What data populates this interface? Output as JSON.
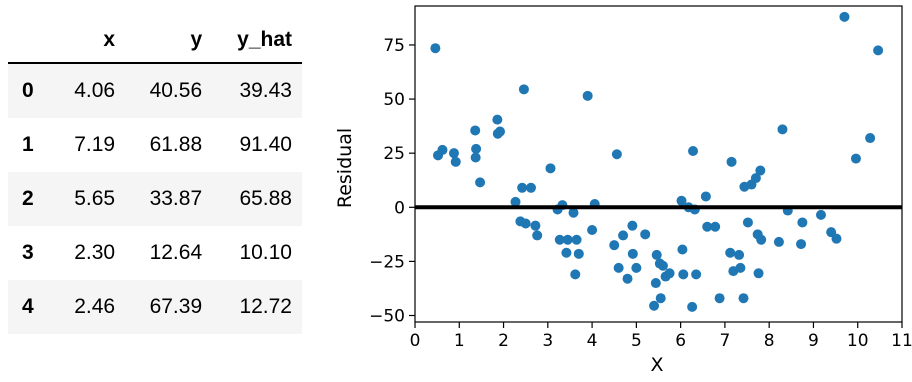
{
  "table": {
    "columns": [
      "",
      "x",
      "y",
      "y_hat"
    ],
    "rows": [
      {
        "index": "0",
        "x": "4.06",
        "y": "40.56",
        "y_hat": "39.43"
      },
      {
        "index": "1",
        "x": "7.19",
        "y": "61.88",
        "y_hat": "91.40"
      },
      {
        "index": "2",
        "x": "5.65",
        "y": "33.87",
        "y_hat": "65.88"
      },
      {
        "index": "3",
        "x": "2.30",
        "y": "12.64",
        "y_hat": "10.10"
      },
      {
        "index": "4",
        "x": "2.46",
        "y": "67.39",
        "y_hat": "12.72"
      }
    ]
  },
  "chart_data": {
    "type": "scatter",
    "xlabel": "X",
    "ylabel": "Residual",
    "xlim": [
      0,
      11
    ],
    "ylim": [
      -53,
      93
    ],
    "xticks": [
      0,
      1,
      2,
      3,
      4,
      5,
      6,
      7,
      8,
      9,
      10,
      11
    ],
    "yticks": [
      -50,
      -25,
      0,
      25,
      50,
      75
    ],
    "grid": false,
    "point_color": "#1f77b4",
    "hline": {
      "y": 0,
      "color": "#000000"
    },
    "points": [
      [
        0.46,
        73.5
      ],
      [
        0.52,
        24
      ],
      [
        0.62,
        26.5
      ],
      [
        0.88,
        25
      ],
      [
        0.92,
        21
      ],
      [
        1.36,
        35.5
      ],
      [
        1.37,
        23
      ],
      [
        1.38,
        27
      ],
      [
        1.47,
        11.5
      ],
      [
        1.86,
        40.5
      ],
      [
        1.87,
        34
      ],
      [
        1.92,
        35
      ],
      [
        2.27,
        2.5
      ],
      [
        2.38,
        -6.5
      ],
      [
        2.42,
        9
      ],
      [
        2.46,
        54.5
      ],
      [
        2.5,
        -7.5
      ],
      [
        2.62,
        9
      ],
      [
        2.72,
        -8.5
      ],
      [
        2.76,
        -13
      ],
      [
        3.06,
        18
      ],
      [
        3.22,
        -1
      ],
      [
        3.27,
        -15
      ],
      [
        3.33,
        1
      ],
      [
        3.42,
        -21
      ],
      [
        3.45,
        -15
      ],
      [
        3.58,
        -2.5
      ],
      [
        3.62,
        -31
      ],
      [
        3.65,
        -15
      ],
      [
        3.7,
        -21.5
      ],
      [
        3.9,
        51.5
      ],
      [
        4.0,
        -10.5
      ],
      [
        4.06,
        1.5
      ],
      [
        4.5,
        -17.5
      ],
      [
        4.56,
        24.5
      ],
      [
        4.6,
        -28
      ],
      [
        4.7,
        -13
      ],
      [
        4.8,
        -33
      ],
      [
        4.91,
        -8.5
      ],
      [
        4.92,
        -21.5
      ],
      [
        5.0,
        -28
      ],
      [
        5.2,
        -12.5
      ],
      [
        5.4,
        -45.5
      ],
      [
        5.44,
        -35
      ],
      [
        5.46,
        -22
      ],
      [
        5.53,
        -26
      ],
      [
        5.55,
        -42
      ],
      [
        5.6,
        -27
      ],
      [
        5.66,
        -32
      ],
      [
        5.75,
        -30.5
      ],
      [
        6.02,
        3
      ],
      [
        6.04,
        -19.5
      ],
      [
        6.06,
        -31
      ],
      [
        6.18,
        0
      ],
      [
        6.26,
        -46
      ],
      [
        6.28,
        26
      ],
      [
        6.32,
        -1
      ],
      [
        6.35,
        -31
      ],
      [
        6.57,
        5
      ],
      [
        6.6,
        -9
      ],
      [
        6.78,
        -9
      ],
      [
        6.88,
        -42
      ],
      [
        7.12,
        -21
      ],
      [
        7.15,
        21
      ],
      [
        7.19,
        -29.5
      ],
      [
        7.32,
        -22
      ],
      [
        7.35,
        -28
      ],
      [
        7.42,
        -42
      ],
      [
        7.44,
        9.5
      ],
      [
        7.52,
        -7
      ],
      [
        7.6,
        10.5
      ],
      [
        7.7,
        13.5
      ],
      [
        7.74,
        -12.5
      ],
      [
        7.76,
        -30.5
      ],
      [
        7.8,
        17
      ],
      [
        7.82,
        -15
      ],
      [
        8.22,
        -16
      ],
      [
        8.3,
        36
      ],
      [
        8.42,
        -1.5
      ],
      [
        8.72,
        -17
      ],
      [
        8.75,
        -7
      ],
      [
        9.17,
        -3.5
      ],
      [
        9.4,
        -11.5
      ],
      [
        9.52,
        -14.5
      ],
      [
        9.7,
        88
      ],
      [
        9.96,
        22.5
      ],
      [
        10.28,
        32
      ],
      [
        10.46,
        72.5
      ]
    ]
  }
}
